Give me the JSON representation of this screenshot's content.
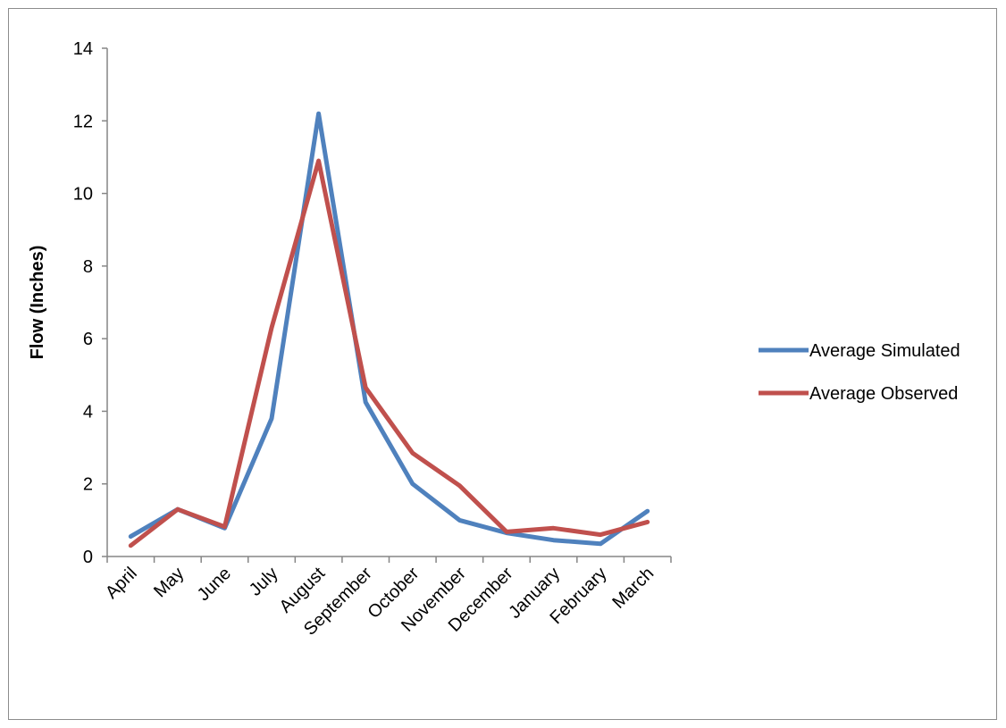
{
  "chart_data": {
    "type": "line",
    "title": "",
    "xlabel": "",
    "ylabel": "Flow (Inches)",
    "ylim": [
      0,
      14
    ],
    "yticks": [
      0,
      2,
      4,
      6,
      8,
      10,
      12,
      14
    ],
    "grid": false,
    "legend_position": "right",
    "categories": [
      "April",
      "May",
      "June",
      "July",
      "August",
      "September",
      "October",
      "November",
      "December",
      "January",
      "February",
      "March"
    ],
    "series": [
      {
        "name": "Average Simulated",
        "color": "#4f81bd",
        "values": [
          0.55,
          1.3,
          0.78,
          3.8,
          12.2,
          4.25,
          2.0,
          1.0,
          0.65,
          0.45,
          0.35,
          1.25
        ]
      },
      {
        "name": "Average Observed",
        "color": "#c0504d",
        "values": [
          0.3,
          1.3,
          0.82,
          6.3,
          10.9,
          4.65,
          2.85,
          1.95,
          0.68,
          0.78,
          0.6,
          0.95
        ]
      }
    ]
  }
}
